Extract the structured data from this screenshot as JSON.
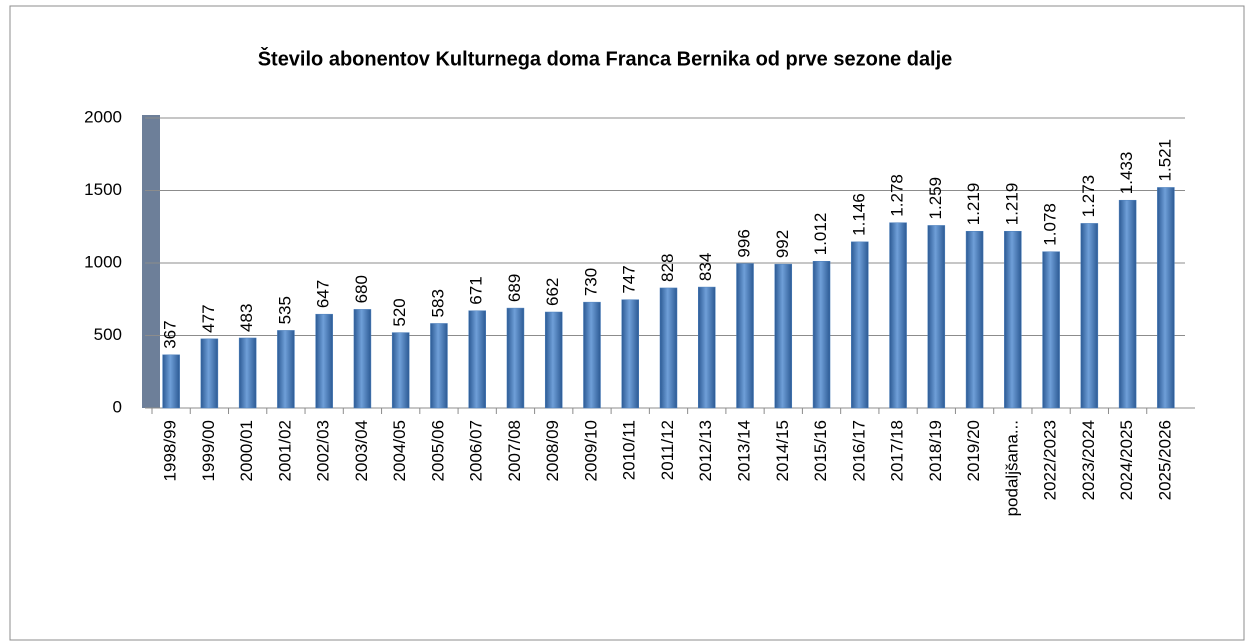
{
  "chart_data": {
    "type": "bar",
    "title": "Število abonentov Kulturnega doma Franca Bernika od prve sezone dalje",
    "categories": [
      "1998/99",
      "1999/00",
      "2000/01",
      "2001/02",
      "2002/03",
      "2003/04",
      "2004/05",
      "2005/06",
      "2006/07",
      "2007/08",
      "2008/09",
      "2009/10",
      "2010/11",
      "2011/12",
      "2012/13",
      "2013/14",
      "2014/15",
      "2015/16",
      "2016/17",
      "2017/18",
      "2018/19",
      "2019/20",
      "podaljšana...",
      "2022/2023",
      "2023/2024",
      "2024/2025",
      "2025/2026"
    ],
    "values": [
      367,
      477,
      483,
      535,
      647,
      680,
      520,
      583,
      671,
      689,
      662,
      730,
      747,
      828,
      834,
      996,
      992,
      1012,
      1146,
      1278,
      1259,
      1219,
      1219,
      1078,
      1273,
      1433,
      1521
    ],
    "value_labels": [
      "367",
      "477",
      "483",
      "535",
      "647",
      "680",
      "520",
      "583",
      "671",
      "689",
      "662",
      "730",
      "747",
      "828",
      "834",
      "996",
      "992",
      "1.012",
      "1.146",
      "1.278",
      "1.259",
      "1.219",
      "1.219",
      "1.078",
      "1.273",
      "1.433",
      "1.521"
    ],
    "color": "#4a7ebb",
    "ylim": [
      0,
      2000
    ],
    "yticks": [
      0,
      500,
      1000,
      1500,
      2000
    ],
    "grid": true
  }
}
